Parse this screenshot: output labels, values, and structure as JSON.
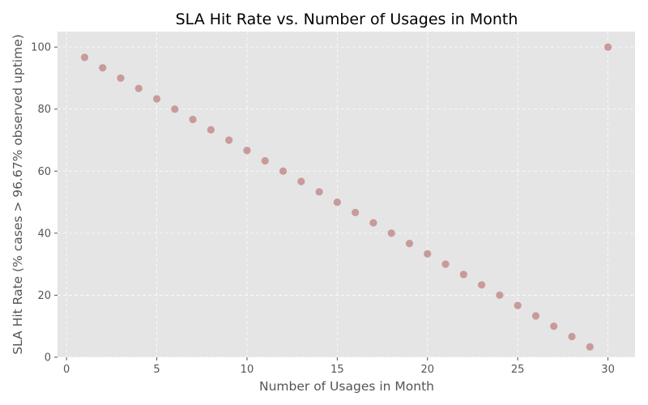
{
  "chart_data": {
    "type": "scatter",
    "title": "SLA Hit Rate vs. Number of Usages in Month",
    "xlabel": "Number of Usages in Month",
    "ylabel": "SLA Hit Rate (% cases > 96.67% observed uptime)",
    "xlim": [
      -0.5,
      31.5
    ],
    "ylim": [
      0,
      105
    ],
    "xticks": [
      0,
      5,
      10,
      15,
      20,
      25,
      30
    ],
    "yticks": [
      0,
      20,
      40,
      60,
      80,
      100
    ],
    "grid": true,
    "marker_color": "#c99a9a",
    "background_color": "#e5e5e5",
    "points": [
      {
        "x": 1,
        "y": 96.67
      },
      {
        "x": 2,
        "y": 93.33
      },
      {
        "x": 3,
        "y": 90.0
      },
      {
        "x": 4,
        "y": 86.67
      },
      {
        "x": 5,
        "y": 83.33
      },
      {
        "x": 6,
        "y": 80.0
      },
      {
        "x": 7,
        "y": 76.67
      },
      {
        "x": 8,
        "y": 73.33
      },
      {
        "x": 9,
        "y": 70.0
      },
      {
        "x": 10,
        "y": 66.67
      },
      {
        "x": 11,
        "y": 63.33
      },
      {
        "x": 12,
        "y": 60.0
      },
      {
        "x": 13,
        "y": 56.67
      },
      {
        "x": 14,
        "y": 53.33
      },
      {
        "x": 15,
        "y": 50.0
      },
      {
        "x": 16,
        "y": 46.67
      },
      {
        "x": 17,
        "y": 43.33
      },
      {
        "x": 18,
        "y": 40.0
      },
      {
        "x": 19,
        "y": 36.67
      },
      {
        "x": 20,
        "y": 33.33
      },
      {
        "x": 21,
        "y": 30.0
      },
      {
        "x": 22,
        "y": 26.67
      },
      {
        "x": 23,
        "y": 23.33
      },
      {
        "x": 24,
        "y": 20.0
      },
      {
        "x": 25,
        "y": 16.67
      },
      {
        "x": 26,
        "y": 13.33
      },
      {
        "x": 27,
        "y": 10.0
      },
      {
        "x": 28,
        "y": 6.67
      },
      {
        "x": 29,
        "y": 3.33
      },
      {
        "x": 30,
        "y": 100.0
      }
    ]
  }
}
